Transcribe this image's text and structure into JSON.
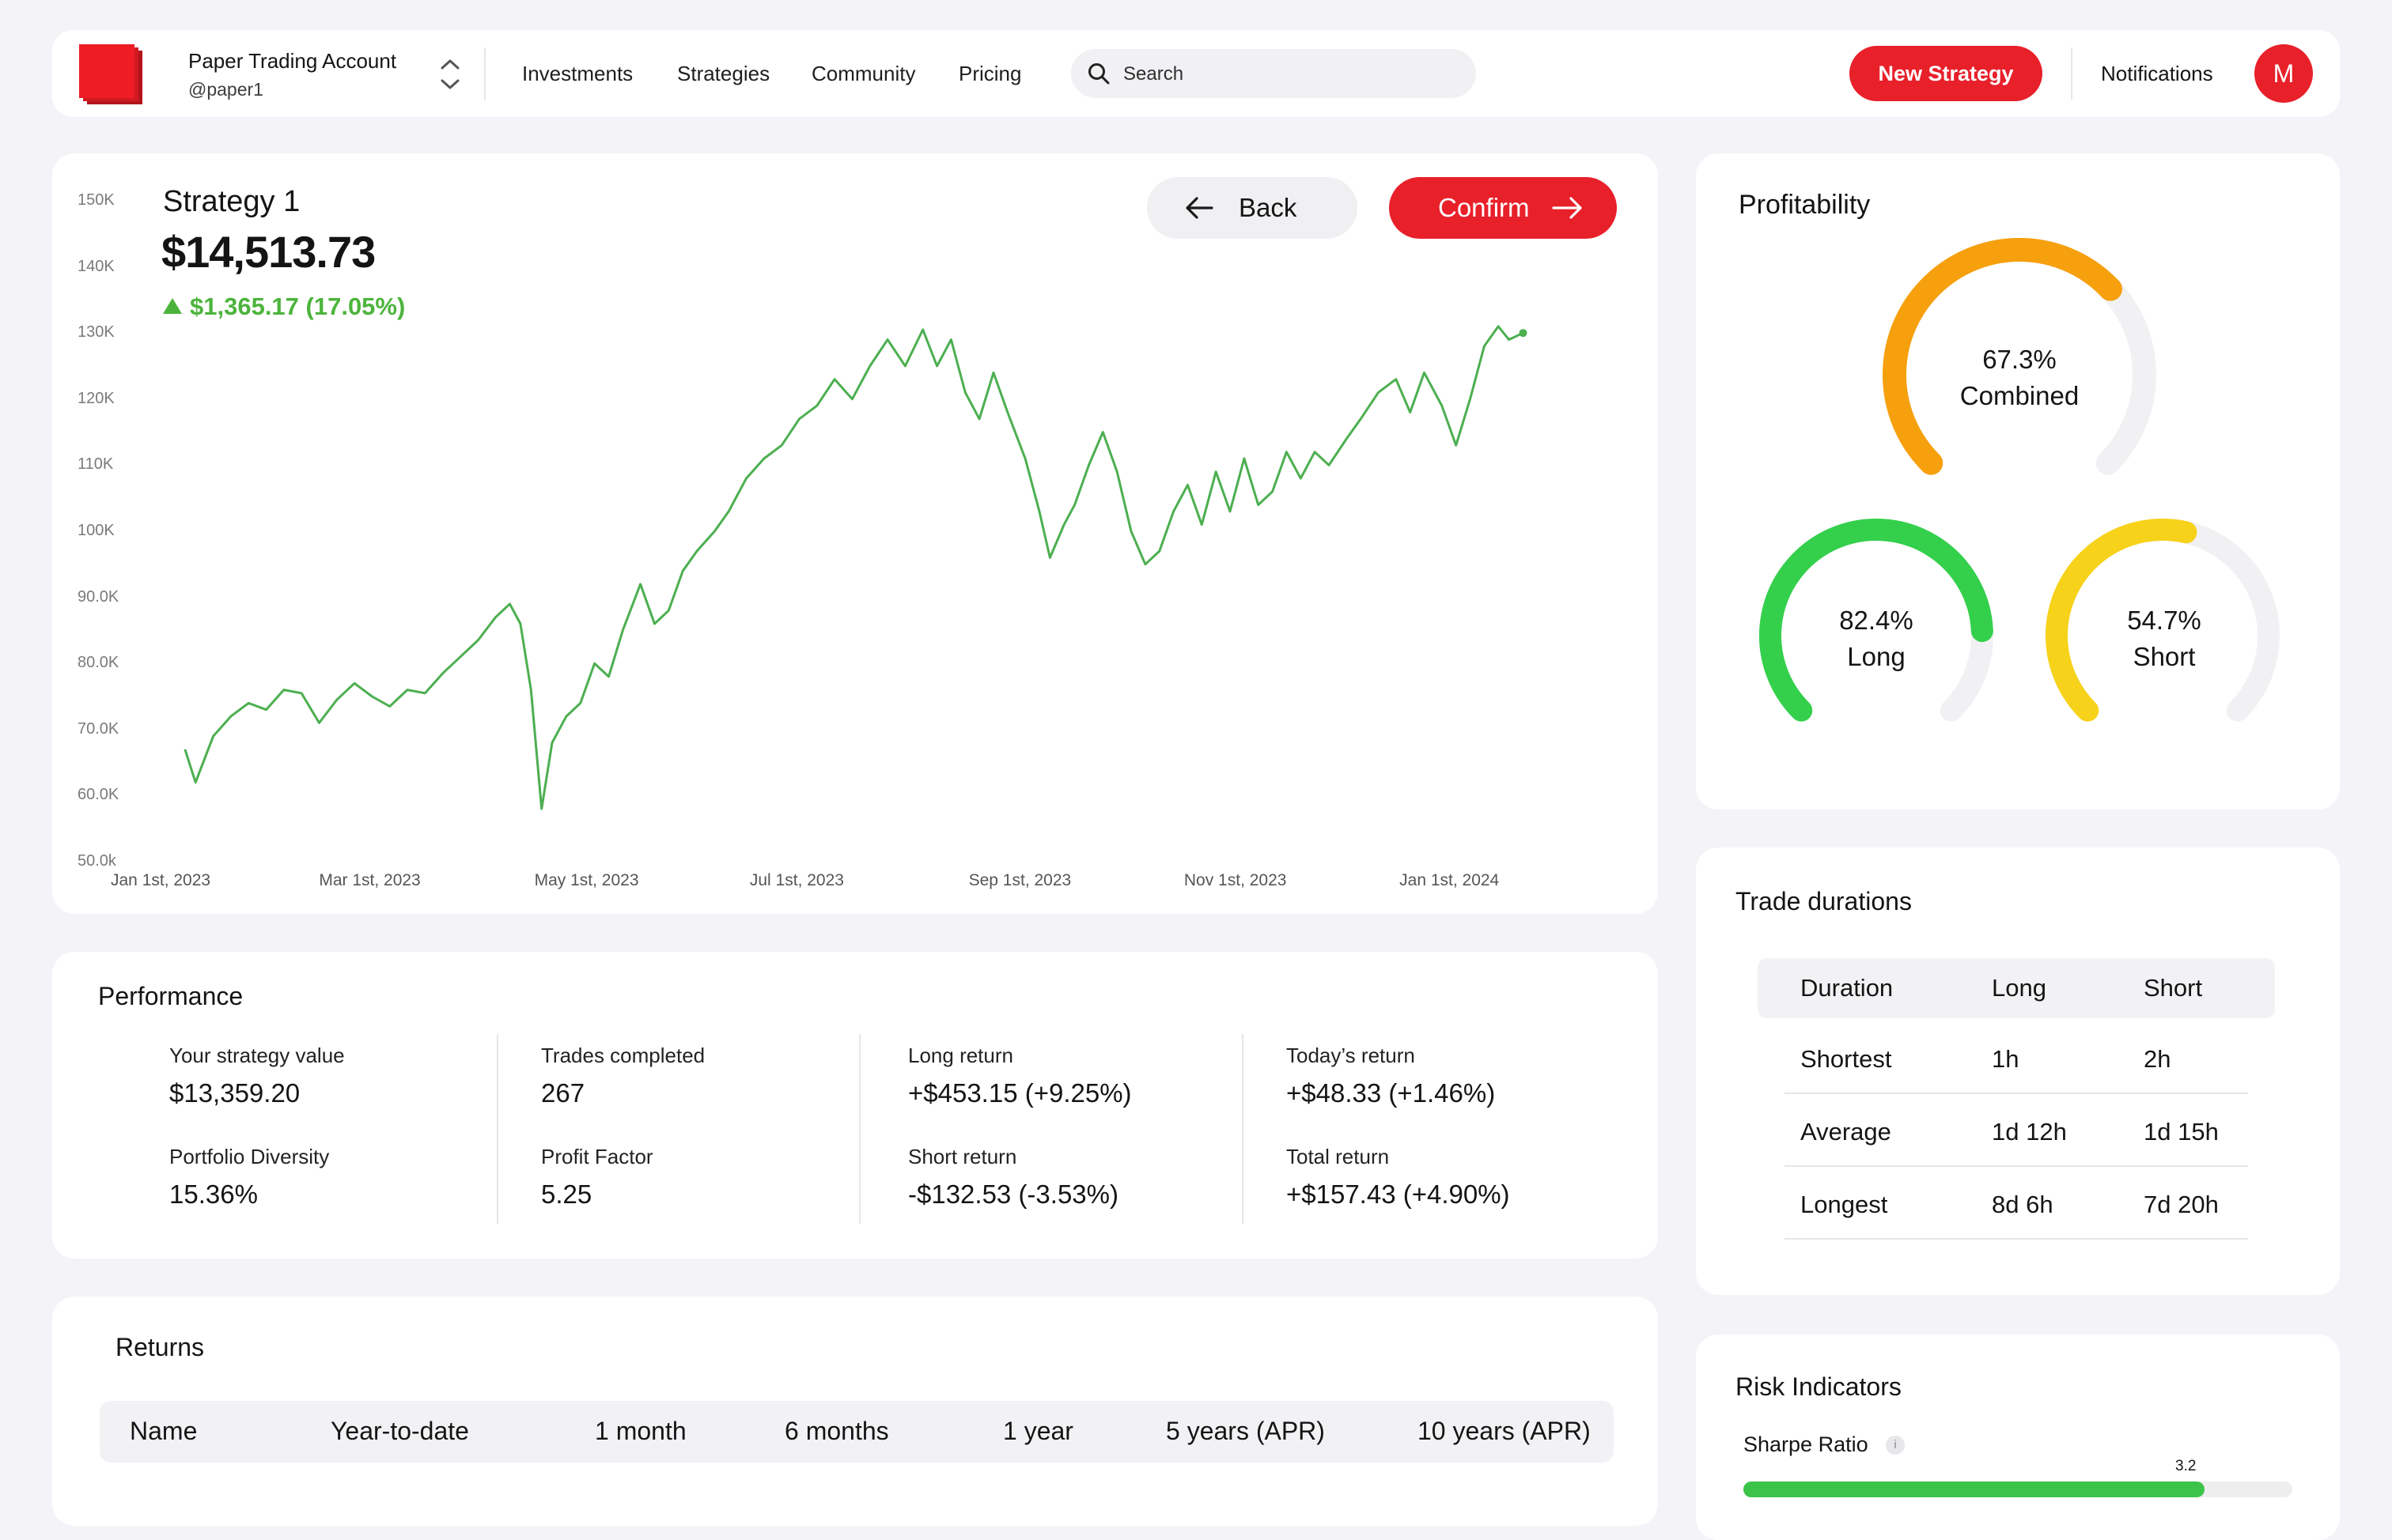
{
  "nav": {
    "account_name": "Paper Trading Account",
    "account_handle": "@paper1",
    "links": [
      "Investments",
      "Strategies",
      "Community",
      "Pricing"
    ],
    "search_placeholder": "Search",
    "new_strategy": "New Strategy",
    "notifications": "Notifications",
    "avatar_initial": "M",
    "brand_color": "#e8202a"
  },
  "strategy": {
    "title": "Strategy 1",
    "value": "$14,513.73",
    "change": "$1,365.17 (17.05%)",
    "change_direction": "up",
    "back_label": "Back",
    "confirm_label": "Confirm"
  },
  "chart_data": {
    "type": "line",
    "title": "",
    "xlabel": "",
    "ylabel": "",
    "y_ticks": [
      "150K",
      "140K",
      "130K",
      "120K",
      "110K",
      "100K",
      "90.0K",
      "80.0K",
      "70.0K",
      "60.0K",
      "50.0k"
    ],
    "x_ticks": [
      "Jan 1st, 2023",
      "Mar 1st, 2023",
      "May 1st, 2023",
      "Jul 1st, 2023",
      "Sep 1st, 2023",
      "Nov 1st, 2023",
      "Jan 1st, 2024"
    ],
    "ylim": [
      50000,
      150000
    ],
    "xlim": [
      "2023-01-01",
      "2024-02-15"
    ],
    "grid": false,
    "series": [
      {
        "color": "#4caf50",
        "points": [
          [
            "2023-01-05",
            67000
          ],
          [
            "2023-01-08",
            62000
          ],
          [
            "2023-01-13",
            69000
          ],
          [
            "2023-01-18",
            72000
          ],
          [
            "2023-01-23",
            74000
          ],
          [
            "2023-01-28",
            73000
          ],
          [
            "2023-02-02",
            76000
          ],
          [
            "2023-02-07",
            75500
          ],
          [
            "2023-02-12",
            71000
          ],
          [
            "2023-02-17",
            74500
          ],
          [
            "2023-02-22",
            77000
          ],
          [
            "2023-02-27",
            75000
          ],
          [
            "2023-03-04",
            73500
          ],
          [
            "2023-03-09",
            76000
          ],
          [
            "2023-03-14",
            75500
          ],
          [
            "2023-03-19",
            78500
          ],
          [
            "2023-03-24",
            81000
          ],
          [
            "2023-03-29",
            83500
          ],
          [
            "2023-04-03",
            87000
          ],
          [
            "2023-04-07",
            89000
          ],
          [
            "2023-04-10",
            86000
          ],
          [
            "2023-04-13",
            76000
          ],
          [
            "2023-04-16",
            58000
          ],
          [
            "2023-04-19",
            68000
          ],
          [
            "2023-04-23",
            72000
          ],
          [
            "2023-04-27",
            74000
          ],
          [
            "2023-05-01",
            80000
          ],
          [
            "2023-05-05",
            78000
          ],
          [
            "2023-05-09",
            85000
          ],
          [
            "2023-05-14",
            92000
          ],
          [
            "2023-05-18",
            86000
          ],
          [
            "2023-05-22",
            88000
          ],
          [
            "2023-05-26",
            94000
          ],
          [
            "2023-05-30",
            97000
          ],
          [
            "2023-06-04",
            100000
          ],
          [
            "2023-06-08",
            103000
          ],
          [
            "2023-06-13",
            108000
          ],
          [
            "2023-06-18",
            111000
          ],
          [
            "2023-06-23",
            113000
          ],
          [
            "2023-06-28",
            117000
          ],
          [
            "2023-07-03",
            119000
          ],
          [
            "2023-07-08",
            123000
          ],
          [
            "2023-07-13",
            120000
          ],
          [
            "2023-07-18",
            125000
          ],
          [
            "2023-07-23",
            129000
          ],
          [
            "2023-07-28",
            125000
          ],
          [
            "2023-08-02",
            130500
          ],
          [
            "2023-08-06",
            125000
          ],
          [
            "2023-08-10",
            129000
          ],
          [
            "2023-08-14",
            121000
          ],
          [
            "2023-08-18",
            117000
          ],
          [
            "2023-08-22",
            124000
          ],
          [
            "2023-08-26",
            118000
          ],
          [
            "2023-08-31",
            111000
          ],
          [
            "2023-09-04",
            103000
          ],
          [
            "2023-09-07",
            96000
          ],
          [
            "2023-09-11",
            101000
          ],
          [
            "2023-09-14",
            104000
          ],
          [
            "2023-09-18",
            110000
          ],
          [
            "2023-09-22",
            115000
          ],
          [
            "2023-09-26",
            109000
          ],
          [
            "2023-09-30",
            100000
          ],
          [
            "2023-10-04",
            95000
          ],
          [
            "2023-10-08",
            97000
          ],
          [
            "2023-10-12",
            103000
          ],
          [
            "2023-10-16",
            107000
          ],
          [
            "2023-10-20",
            101000
          ],
          [
            "2023-10-24",
            109000
          ],
          [
            "2023-10-28",
            103000
          ],
          [
            "2023-11-01",
            111000
          ],
          [
            "2023-11-05",
            104000
          ],
          [
            "2023-11-09",
            106000
          ],
          [
            "2023-11-13",
            112000
          ],
          [
            "2023-11-17",
            108000
          ],
          [
            "2023-11-21",
            112000
          ],
          [
            "2023-11-25",
            110000
          ],
          [
            "2023-11-30",
            114000
          ],
          [
            "2023-12-04",
            117000
          ],
          [
            "2023-12-09",
            121000
          ],
          [
            "2023-12-14",
            123000
          ],
          [
            "2023-12-18",
            118000
          ],
          [
            "2023-12-22",
            124000
          ],
          [
            "2023-12-27",
            119000
          ],
          [
            "2023-12-31",
            113000
          ],
          [
            "2024-01-04",
            120000
          ],
          [
            "2024-01-08",
            128000
          ],
          [
            "2024-01-12",
            131000
          ],
          [
            "2024-01-15",
            129000
          ],
          [
            "2024-01-19",
            130000
          ]
        ]
      }
    ]
  },
  "performance": {
    "heading": "Performance",
    "stats": [
      {
        "label": "Your strategy value",
        "value": "$13,359.20"
      },
      {
        "label": "Trades completed",
        "value": "267"
      },
      {
        "label": "Long return",
        "value": "+$453.15 (+9.25%)"
      },
      {
        "label": "Today’s return",
        "value": "+$48.33 (+1.46%)"
      },
      {
        "label": "Portfolio Diversity",
        "value": "15.36%"
      },
      {
        "label": "Profit Factor",
        "value": "5.25"
      },
      {
        "label": "Short return",
        "value": "-$132.53 (-3.53%)"
      },
      {
        "label": "Total return",
        "value": "+$157.43 (+4.90%)"
      }
    ]
  },
  "returns": {
    "heading": "Returns",
    "columns": [
      "Name",
      "Year-to-date",
      "1 month",
      "6 months",
      "1 year",
      "5 years (APR)",
      "10 years (APR)"
    ]
  },
  "profitability": {
    "heading": "Profitability",
    "gauges": [
      {
        "value_text": "67.3%",
        "label": "Combined",
        "fraction": 0.673,
        "color": "#f6a00e"
      },
      {
        "value_text": "82.4%",
        "label": "Long",
        "fraction": 0.824,
        "color": "#34d04c"
      },
      {
        "value_text": "54.7%",
        "label": "Short",
        "fraction": 0.547,
        "color": "#f7d21a"
      }
    ]
  },
  "durations": {
    "heading": "Trade durations",
    "columns": [
      "Duration",
      "Long",
      "Short"
    ],
    "rows": [
      [
        "Shortest",
        "1h",
        "2h"
      ],
      [
        "Average",
        "1d 12h",
        "1d 15h"
      ],
      [
        "Longest",
        "8d 6h",
        "7d 20h"
      ]
    ]
  },
  "risk": {
    "heading": "Risk Indicators",
    "sharpe_label": "Sharpe Ratio",
    "info_glyph": "i",
    "sharpe_value": "3.2",
    "sharpe_fraction": 0.84
  }
}
